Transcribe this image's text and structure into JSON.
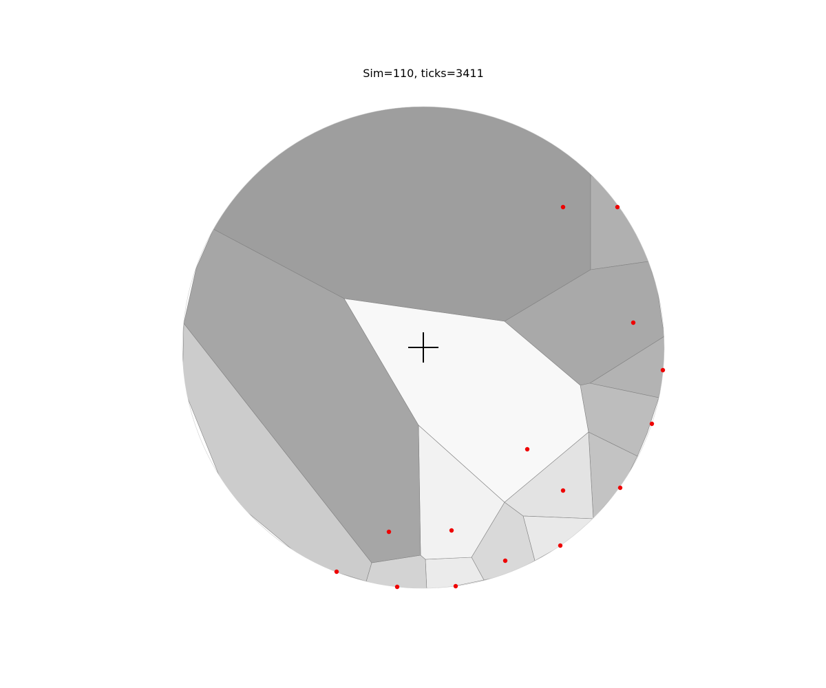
{
  "title": "Sim=110, ticks=3411",
  "colors": {
    "background": "#ffffff",
    "cell_edge": "#808080",
    "marker": "#ee0000",
    "crosshair": "#000000"
  },
  "cells": [
    {
      "name": "cell-top",
      "fill": "#9e9e9e"
    },
    {
      "name": "cell-upper-right-sliver",
      "fill": "#b0b0b0"
    },
    {
      "name": "cell-right-upper",
      "fill": "#a9a9a9"
    },
    {
      "name": "cell-right-small",
      "fill": "#b3b3b3"
    },
    {
      "name": "cell-right-middle",
      "fill": "#bdbdbd"
    },
    {
      "name": "cell-right-lower",
      "fill": "#c3c3c3"
    },
    {
      "name": "cell-lower-right-inner",
      "fill": "#e3e3e3"
    },
    {
      "name": "cell-lower-right-edge",
      "fill": "#e9e9e9"
    },
    {
      "name": "cell-bottom-right",
      "fill": "#d9d9d9"
    },
    {
      "name": "cell-bottom-middle",
      "fill": "#ebebeb"
    },
    {
      "name": "cell-bottom-left",
      "fill": "#d3d3d3"
    },
    {
      "name": "cell-lower-center",
      "fill": "#f2f2f2"
    },
    {
      "name": "cell-left-band",
      "fill": "#cccccc"
    },
    {
      "name": "cell-left",
      "fill": "#a6a6a6"
    },
    {
      "name": "cell-center",
      "fill": "#f8f8f8"
    }
  ]
}
